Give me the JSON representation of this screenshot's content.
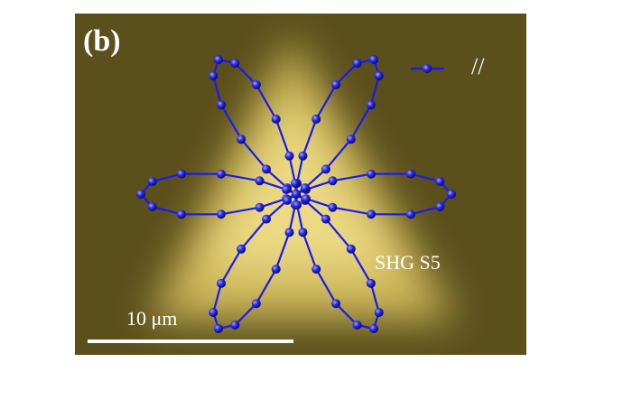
{
  "chart_data": {
    "type": "polar",
    "panel_label": "(b)",
    "annotation": "SHG  S5",
    "scale_bar": "10 μm",
    "theta": [
      0,
      5,
      10,
      15,
      20,
      25,
      30,
      35,
      40,
      45,
      50,
      55,
      60,
      65,
      70,
      75,
      80,
      85,
      90,
      95,
      100,
      105,
      110,
      115,
      120,
      125,
      130,
      135,
      140,
      145,
      150,
      155,
      160,
      165,
      170,
      175,
      180,
      185,
      190,
      195,
      200,
      205,
      210,
      215,
      220,
      225,
      230,
      235,
      240,
      245,
      250,
      255,
      260,
      265,
      270,
      275,
      280,
      285,
      290,
      295,
      300,
      305,
      310,
      315,
      320,
      325,
      330,
      335,
      340,
      345,
      350,
      355
    ],
    "series": [
      {
        "name": "//",
        "color": "#1a1aee",
        "values": [
          1,
          0.93,
          0.75,
          0.5,
          0.25,
          0.07,
          0,
          0.07,
          0.25,
          0.5,
          0.75,
          0.93,
          1,
          0.93,
          0.75,
          0.5,
          0.25,
          0.07,
          0,
          0.07,
          0.25,
          0.5,
          0.75,
          0.93,
          1,
          0.93,
          0.75,
          0.5,
          0.25,
          0.07,
          0,
          0.07,
          0.25,
          0.5,
          0.75,
          0.93,
          1,
          0.93,
          0.75,
          0.5,
          0.25,
          0.07,
          0,
          0.07,
          0.25,
          0.5,
          0.75,
          0.93,
          1,
          0.93,
          0.75,
          0.5,
          0.25,
          0.07,
          0,
          0.07,
          0.25,
          0.5,
          0.75,
          0.93,
          1,
          0.93,
          0.75,
          0.5,
          0.25,
          0.07,
          0,
          0.07,
          0.25,
          0.5,
          0.75,
          0.93
        ]
      }
    ]
  }
}
